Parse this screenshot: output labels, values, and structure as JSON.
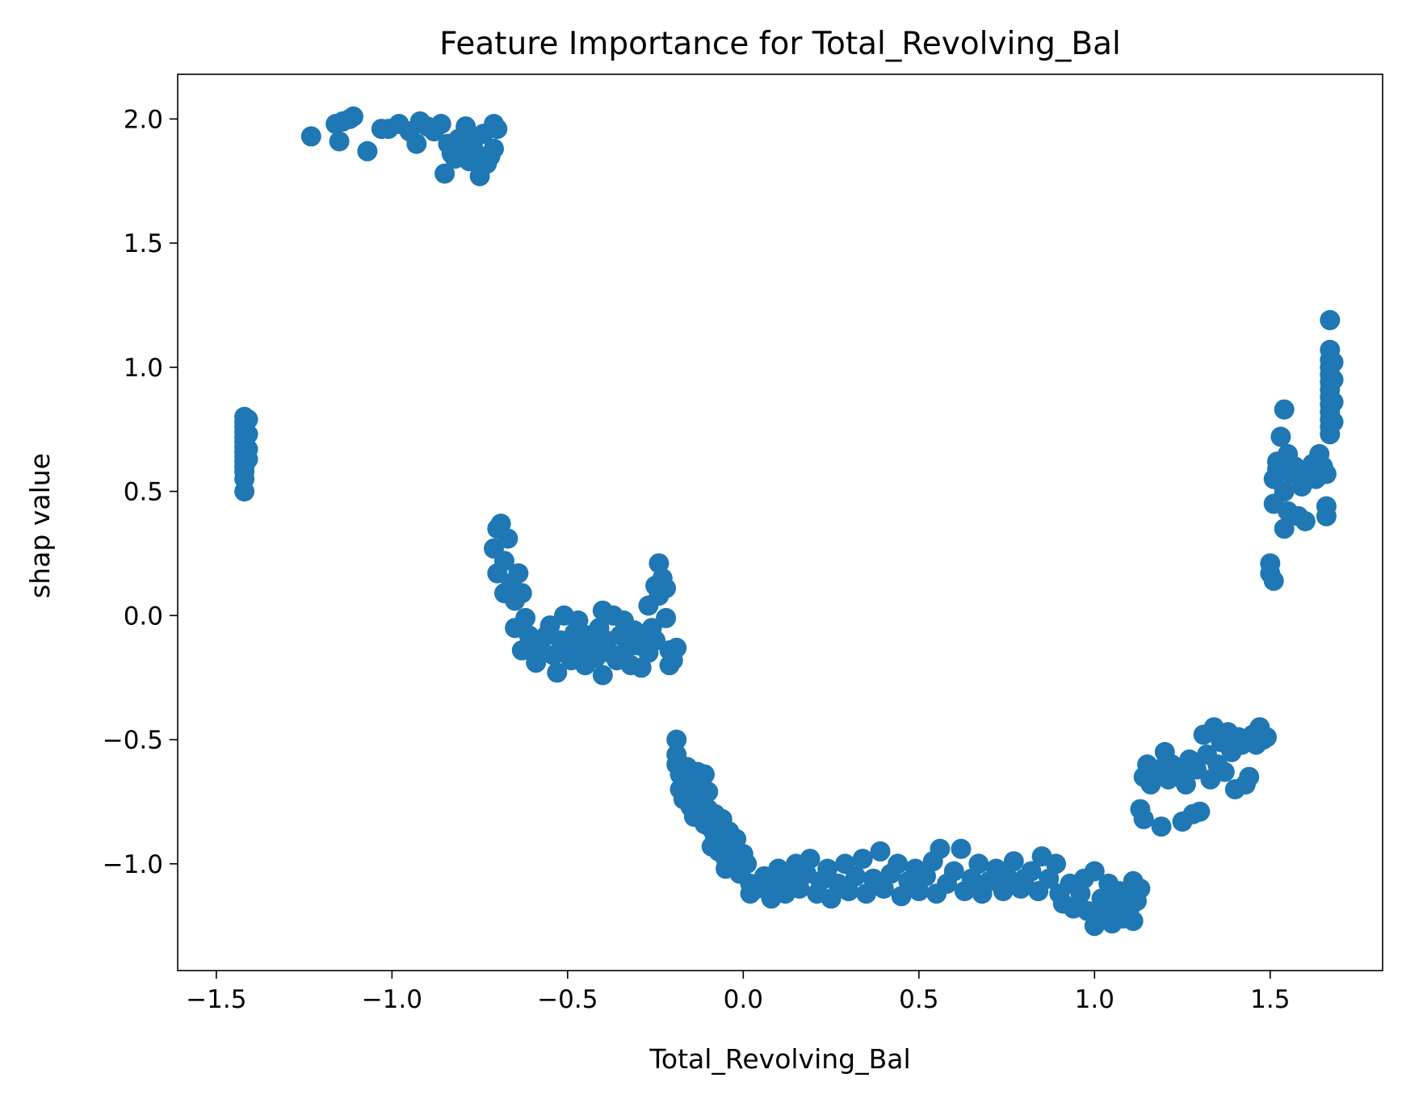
{
  "chart_data": {
    "type": "scatter",
    "title": "Feature Importance for Total_Revolving_Bal",
    "xlabel": "Total_Revolving_Bal",
    "ylabel": "shap value",
    "xlim": [
      -1.61,
      1.82
    ],
    "ylim": [
      -1.43,
      2.18
    ],
    "xticks": [
      -1.5,
      -1.0,
      -0.5,
      0.0,
      0.5,
      1.0,
      1.5
    ],
    "xtick_labels": [
      "−1.5",
      "−1.0",
      "−0.5",
      "0.0",
      "0.5",
      "1.0",
      "1.5"
    ],
    "yticks": [
      -1.0,
      -0.5,
      0.0,
      0.5,
      1.0,
      1.5,
      2.0
    ],
    "ytick_labels": [
      "−1.0",
      "−0.5",
      "0.0",
      "0.5",
      "1.0",
      "1.5",
      "2.0"
    ],
    "grid": false,
    "marker_color": "#1f77b4",
    "series": [
      {
        "points": [
          [
            -1.42,
            0.8
          ],
          [
            -1.42,
            0.78
          ],
          [
            -1.42,
            0.76
          ],
          [
            -1.42,
            0.74
          ],
          [
            -1.42,
            0.72
          ],
          [
            -1.42,
            0.7
          ],
          [
            -1.42,
            0.68
          ],
          [
            -1.42,
            0.66
          ],
          [
            -1.42,
            0.64
          ],
          [
            -1.42,
            0.62
          ],
          [
            -1.42,
            0.6
          ],
          [
            -1.42,
            0.58
          ],
          [
            -1.42,
            0.55
          ],
          [
            -1.42,
            0.5
          ],
          [
            -1.41,
            0.79
          ],
          [
            -1.41,
            0.73
          ],
          [
            -1.41,
            0.67
          ],
          [
            -1.41,
            0.63
          ],
          [
            -1.23,
            1.93
          ],
          [
            -1.16,
            1.98
          ],
          [
            -1.15,
            1.91
          ],
          [
            -1.14,
            1.99
          ],
          [
            -1.12,
            2.0
          ],
          [
            -1.11,
            2.01
          ],
          [
            -1.07,
            1.87
          ],
          [
            -1.03,
            1.96
          ],
          [
            -1.01,
            1.96
          ],
          [
            -0.98,
            1.98
          ],
          [
            -0.95,
            1.95
          ],
          [
            -0.93,
            1.9
          ],
          [
            -0.92,
            1.99
          ],
          [
            -0.9,
            1.97
          ],
          [
            -0.88,
            1.95
          ],
          [
            -0.86,
            1.98
          ],
          [
            -0.85,
            1.78
          ],
          [
            -0.84,
            1.9
          ],
          [
            -0.83,
            1.86
          ],
          [
            -0.82,
            1.84
          ],
          [
            -0.81,
            1.92
          ],
          [
            -0.8,
            1.88
          ],
          [
            -0.79,
            1.97
          ],
          [
            -0.78,
            1.83
          ],
          [
            -0.77,
            1.9
          ],
          [
            -0.76,
            1.86
          ],
          [
            -0.75,
            1.77
          ],
          [
            -0.74,
            1.94
          ],
          [
            -0.73,
            1.82
          ],
          [
            -0.72,
            1.85
          ],
          [
            -0.71,
            1.98
          ],
          [
            -0.7,
            1.96
          ],
          [
            -0.71,
            1.88
          ],
          [
            -0.71,
            0.27
          ],
          [
            -0.7,
            0.35
          ],
          [
            -0.69,
            0.37
          ],
          [
            -0.7,
            0.17
          ],
          [
            -0.68,
            0.22
          ],
          [
            -0.67,
            0.31
          ],
          [
            -0.68,
            0.09
          ],
          [
            -0.66,
            0.13
          ],
          [
            -0.65,
            0.06
          ],
          [
            -0.64,
            0.17
          ],
          [
            -0.65,
            -0.05
          ],
          [
            -0.63,
            0.09
          ],
          [
            -0.62,
            -0.01
          ],
          [
            -0.63,
            -0.14
          ],
          [
            -0.61,
            -0.08
          ],
          [
            -0.6,
            -0.12
          ],
          [
            -0.59,
            -0.19
          ],
          [
            -0.58,
            -0.1
          ],
          [
            -0.57,
            -0.15
          ],
          [
            -0.56,
            -0.08
          ],
          [
            -0.55,
            -0.04
          ],
          [
            -0.54,
            -0.16
          ],
          [
            -0.53,
            -0.23
          ],
          [
            -0.52,
            -0.1
          ],
          [
            -0.51,
            0.0
          ],
          [
            -0.5,
            -0.12
          ],
          [
            -0.49,
            -0.18
          ],
          [
            -0.48,
            -0.07
          ],
          [
            -0.47,
            -0.02
          ],
          [
            -0.46,
            -0.14
          ],
          [
            -0.45,
            -0.2
          ],
          [
            -0.44,
            -0.08
          ],
          [
            -0.43,
            -0.12
          ],
          [
            -0.42,
            -0.17
          ],
          [
            -0.41,
            -0.05
          ],
          [
            -0.4,
            0.02
          ],
          [
            -0.4,
            -0.24
          ],
          [
            -0.39,
            -0.1
          ],
          [
            -0.38,
            -0.15
          ],
          [
            -0.37,
            0.0
          ],
          [
            -0.36,
            -0.18
          ],
          [
            -0.35,
            -0.08
          ],
          [
            -0.34,
            -0.02
          ],
          [
            -0.33,
            -0.13
          ],
          [
            -0.32,
            -0.2
          ],
          [
            -0.31,
            -0.06
          ],
          [
            -0.3,
            -0.12
          ],
          [
            -0.29,
            -0.21
          ],
          [
            -0.28,
            -0.09
          ],
          [
            -0.27,
            -0.15
          ],
          [
            -0.26,
            -0.05
          ],
          [
            -0.25,
            -0.1
          ],
          [
            -0.27,
            0.04
          ],
          [
            -0.25,
            0.12
          ],
          [
            -0.24,
            0.21
          ],
          [
            -0.24,
            0.08
          ],
          [
            -0.23,
            0.15
          ],
          [
            -0.22,
            0.11
          ],
          [
            -0.22,
            -0.01
          ],
          [
            -0.21,
            -0.14
          ],
          [
            -0.21,
            -0.2
          ],
          [
            -0.2,
            -0.18
          ],
          [
            -0.19,
            -0.13
          ],
          [
            -0.19,
            -0.5
          ],
          [
            -0.19,
            -0.56
          ],
          [
            -0.19,
            -0.6
          ],
          [
            -0.18,
            -0.64
          ],
          [
            -0.18,
            -0.7
          ],
          [
            -0.17,
            -0.74
          ],
          [
            -0.16,
            -0.68
          ],
          [
            -0.16,
            -0.61
          ],
          [
            -0.15,
            -0.77
          ],
          [
            -0.15,
            -0.66
          ],
          [
            -0.14,
            -0.72
          ],
          [
            -0.14,
            -0.81
          ],
          [
            -0.13,
            -0.63
          ],
          [
            -0.12,
            -0.76
          ],
          [
            -0.12,
            -0.68
          ],
          [
            -0.11,
            -0.64
          ],
          [
            -0.11,
            -0.84
          ],
          [
            -0.1,
            -0.71
          ],
          [
            -0.1,
            -0.78
          ],
          [
            -0.09,
            -0.86
          ],
          [
            -0.09,
            -0.93
          ],
          [
            -0.08,
            -0.8
          ],
          [
            -0.08,
            -0.89
          ],
          [
            -0.07,
            -0.95
          ],
          [
            -0.06,
            -0.82
          ],
          [
            -0.06,
            -0.91
          ],
          [
            -0.05,
            -0.98
          ],
          [
            -0.05,
            -1.02
          ],
          [
            -0.04,
            -0.87
          ],
          [
            -0.03,
            -0.94
          ],
          [
            -0.02,
            -0.99
          ],
          [
            -0.02,
            -0.9
          ],
          [
            -0.01,
            -1.04
          ],
          [
            0.0,
            -0.96
          ],
          [
            0.01,
            -1.0
          ],
          [
            0.02,
            -1.08
          ],
          [
            0.02,
            -1.12
          ],
          [
            0.04,
            -1.1
          ],
          [
            0.06,
            -1.05
          ],
          [
            0.08,
            -1.14
          ],
          [
            0.09,
            -1.08
          ],
          [
            0.1,
            -1.02
          ],
          [
            0.12,
            -1.12
          ],
          [
            0.13,
            -1.06
          ],
          [
            0.15,
            -1.0
          ],
          [
            0.16,
            -1.1
          ],
          [
            0.18,
            -1.04
          ],
          [
            0.19,
            -0.98
          ],
          [
            0.21,
            -1.12
          ],
          [
            0.22,
            -1.07
          ],
          [
            0.24,
            -1.02
          ],
          [
            0.25,
            -1.14
          ],
          [
            0.27,
            -1.08
          ],
          [
            0.29,
            -1.0
          ],
          [
            0.3,
            -1.11
          ],
          [
            0.32,
            -1.05
          ],
          [
            0.34,
            -0.98
          ],
          [
            0.35,
            -1.12
          ],
          [
            0.37,
            -1.06
          ],
          [
            0.39,
            -0.95
          ],
          [
            0.4,
            -1.1
          ],
          [
            0.42,
            -1.04
          ],
          [
            0.44,
            -1.0
          ],
          [
            0.45,
            -1.13
          ],
          [
            0.47,
            -1.07
          ],
          [
            0.49,
            -1.02
          ],
          [
            0.5,
            -1.11
          ],
          [
            0.52,
            -1.05
          ],
          [
            0.54,
            -0.99
          ],
          [
            0.55,
            -1.12
          ],
          [
            0.56,
            -0.94
          ],
          [
            0.58,
            -1.08
          ],
          [
            0.6,
            -1.03
          ],
          [
            0.62,
            -0.94
          ],
          [
            0.63,
            -1.11
          ],
          [
            0.65,
            -1.06
          ],
          [
            0.67,
            -1.0
          ],
          [
            0.68,
            -1.12
          ],
          [
            0.7,
            -1.07
          ],
          [
            0.72,
            -1.02
          ],
          [
            0.74,
            -1.11
          ],
          [
            0.75,
            -1.05
          ],
          [
            0.77,
            -0.99
          ],
          [
            0.79,
            -1.1
          ],
          [
            0.8,
            -1.06
          ],
          [
            0.82,
            -1.03
          ],
          [
            0.84,
            -1.11
          ],
          [
            0.85,
            -0.97
          ],
          [
            0.87,
            -1.06
          ],
          [
            0.89,
            -1.0
          ],
          [
            0.9,
            -1.12
          ],
          [
            0.91,
            -1.16
          ],
          [
            0.93,
            -1.08
          ],
          [
            0.94,
            -1.18
          ],
          [
            0.96,
            -1.12
          ],
          [
            0.97,
            -1.06
          ],
          [
            0.98,
            -1.19
          ],
          [
            1.0,
            -1.03
          ],
          [
            1.0,
            -1.25
          ],
          [
            1.02,
            -1.14
          ],
          [
            1.03,
            -1.2
          ],
          [
            1.04,
            -1.08
          ],
          [
            1.05,
            -1.24
          ],
          [
            1.06,
            -1.16
          ],
          [
            1.07,
            -1.11
          ],
          [
            1.08,
            -1.22
          ],
          [
            1.09,
            -1.13
          ],
          [
            1.1,
            -1.18
          ],
          [
            1.11,
            -1.07
          ],
          [
            1.11,
            -1.23
          ],
          [
            1.12,
            -1.15
          ],
          [
            1.13,
            -1.1
          ],
          [
            1.13,
            -0.78
          ],
          [
            1.14,
            -0.82
          ],
          [
            1.14,
            -0.65
          ],
          [
            1.15,
            -0.6
          ],
          [
            1.16,
            -0.68
          ],
          [
            1.18,
            -0.62
          ],
          [
            1.19,
            -0.85
          ],
          [
            1.2,
            -0.55
          ],
          [
            1.21,
            -0.66
          ],
          [
            1.22,
            -0.6
          ],
          [
            1.24,
            -0.64
          ],
          [
            1.25,
            -0.83
          ],
          [
            1.26,
            -0.68
          ],
          [
            1.27,
            -0.58
          ],
          [
            1.28,
            -0.8
          ],
          [
            1.29,
            -0.62
          ],
          [
            1.3,
            -0.79
          ],
          [
            1.31,
            -0.48
          ],
          [
            1.32,
            -0.56
          ],
          [
            1.33,
            -0.66
          ],
          [
            1.34,
            -0.45
          ],
          [
            1.35,
            -0.6
          ],
          [
            1.36,
            -0.51
          ],
          [
            1.37,
            -0.63
          ],
          [
            1.38,
            -0.47
          ],
          [
            1.39,
            -0.55
          ],
          [
            1.4,
            -0.7
          ],
          [
            1.41,
            -0.49
          ],
          [
            1.42,
            -0.52
          ],
          [
            1.43,
            -0.68
          ],
          [
            1.44,
            -0.65
          ],
          [
            1.45,
            -0.48
          ],
          [
            1.46,
            -0.52
          ],
          [
            1.47,
            -0.45
          ],
          [
            1.48,
            -0.5
          ],
          [
            1.49,
            -0.49
          ],
          [
            1.5,
            0.21
          ],
          [
            1.5,
            0.17
          ],
          [
            1.51,
            0.14
          ],
          [
            1.51,
            0.55
          ],
          [
            1.51,
            0.45
          ],
          [
            1.52,
            0.62
          ],
          [
            1.52,
            0.59
          ],
          [
            1.53,
            0.72
          ],
          [
            1.54,
            0.83
          ],
          [
            1.54,
            0.5
          ],
          [
            1.54,
            0.35
          ],
          [
            1.55,
            0.65
          ],
          [
            1.55,
            0.42
          ],
          [
            1.56,
            0.57
          ],
          [
            1.57,
            0.6
          ],
          [
            1.58,
            0.4
          ],
          [
            1.59,
            0.52
          ],
          [
            1.6,
            0.38
          ],
          [
            1.61,
            0.58
          ],
          [
            1.62,
            0.61
          ],
          [
            1.63,
            0.55
          ],
          [
            1.64,
            0.65
          ],
          [
            1.65,
            0.6
          ],
          [
            1.66,
            0.57
          ],
          [
            1.66,
            0.44
          ],
          [
            1.66,
            0.4
          ],
          [
            1.67,
            1.19
          ],
          [
            1.67,
            1.07
          ],
          [
            1.67,
            1.03
          ],
          [
            1.67,
            1.0
          ],
          [
            1.67,
            0.97
          ],
          [
            1.67,
            0.94
          ],
          [
            1.67,
            0.91
          ],
          [
            1.67,
            0.88
          ],
          [
            1.67,
            0.85
          ],
          [
            1.67,
            0.82
          ],
          [
            1.67,
            0.79
          ],
          [
            1.67,
            0.76
          ],
          [
            1.67,
            0.73
          ],
          [
            1.68,
            1.02
          ],
          [
            1.68,
            0.95
          ],
          [
            1.68,
            0.86
          ],
          [
            1.68,
            0.78
          ]
        ]
      }
    ]
  }
}
